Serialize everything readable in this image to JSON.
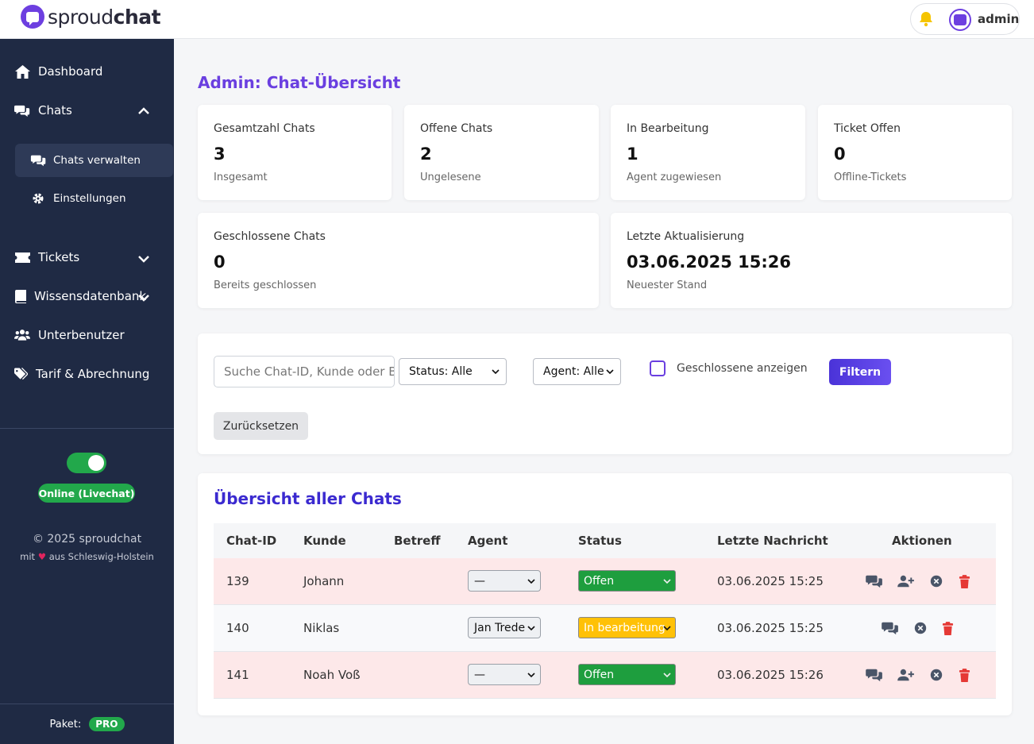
{
  "brand": {
    "name_regular": "sproud",
    "name_bold": "chat",
    "primary_color": "#6a3fe0"
  },
  "header": {
    "user_name": "admin",
    "icons": [
      "bell-icon",
      "avatar-icon"
    ]
  },
  "sidebar": {
    "items": [
      {
        "label": "Dashboard",
        "icon": "home-icon"
      },
      {
        "label": "Chats",
        "icon": "chats-icon",
        "expanded": true
      },
      {
        "label": "Tickets",
        "icon": "ticket-icon",
        "expanded": false
      },
      {
        "label": "Wissensdatenbank",
        "icon": "book-icon",
        "expanded": false
      },
      {
        "label": "Unterbenutzer",
        "icon": "users-icon"
      },
      {
        "label": "Tarif & Abrechnung",
        "icon": "tags-icon"
      }
    ],
    "subitems": [
      {
        "label": "Chats verwalten",
        "icon": "chats-icon",
        "active": true
      },
      {
        "label": "Einstellungen",
        "icon": "gear-icon",
        "active": false
      }
    ],
    "online_toggle": true,
    "online_label": "Online (Livechat)",
    "copyright": "© 2025 sproudchat",
    "madewith_prefix": "mit",
    "madewith_suffix": "aus Schleswig-Holstein",
    "package_label": "Paket:",
    "package_value": "PRO"
  },
  "main": {
    "title": "Admin: Chat-Übersicht",
    "stats": [
      {
        "label": "Gesamtzahl Chats",
        "value": "3",
        "sub": "Insgesamt"
      },
      {
        "label": "Offene Chats",
        "value": "2",
        "sub": "Ungelesene"
      },
      {
        "label": "In Bearbeitung",
        "value": "1",
        "sub": "Agent zugewiesen"
      },
      {
        "label": "Ticket Offen",
        "value": "0",
        "sub": "Offline-Tickets"
      },
      {
        "label": "Geschlossene Chats",
        "value": "0",
        "sub": "Bereits geschlossen"
      },
      {
        "label": "Letzte Aktualisierung",
        "value": "03.06.2025 15:26",
        "sub": "Neuester Stand"
      }
    ],
    "filter": {
      "search_placeholder": "Suche Chat-ID, Kunde oder Be",
      "status_select": "Status: Alle",
      "agent_select": "Agent: Alle",
      "show_closed_label": "Geschlossene anzeigen",
      "show_closed_checked": false,
      "filter_button": "Filtern",
      "reset_button": "Zurücksetzen"
    },
    "table": {
      "title": "Übersicht aller Chats",
      "columns": [
        "Chat-ID",
        "Kunde",
        "Betreff",
        "Agent",
        "Status",
        "Letzte Nachricht",
        "Aktionen"
      ],
      "rows": [
        {
          "id": "139",
          "kunde": "Johann",
          "betreff": "",
          "agent": "—",
          "status": "Offen",
          "status_color": "#1e9e3e",
          "last": "03.06.2025 15:25",
          "actions": [
            "chat-icon",
            "assign-user-icon",
            "close-icon",
            "delete-icon"
          ]
        },
        {
          "id": "140",
          "kunde": "Niklas",
          "betreff": "",
          "agent": "Jan Trede",
          "status": "In bearbeitung",
          "status_color": "#ffc107",
          "last": "03.06.2025 15:25",
          "actions": [
            "chat-icon",
            "close-icon",
            "delete-icon"
          ]
        },
        {
          "id": "141",
          "kunde": "Noah Voß",
          "betreff": "",
          "agent": "—",
          "status": "Offen",
          "status_color": "#1e9e3e",
          "last": "03.06.2025 15:26",
          "actions": [
            "chat-icon",
            "assign-user-icon",
            "close-icon",
            "delete-icon"
          ]
        }
      ]
    }
  }
}
